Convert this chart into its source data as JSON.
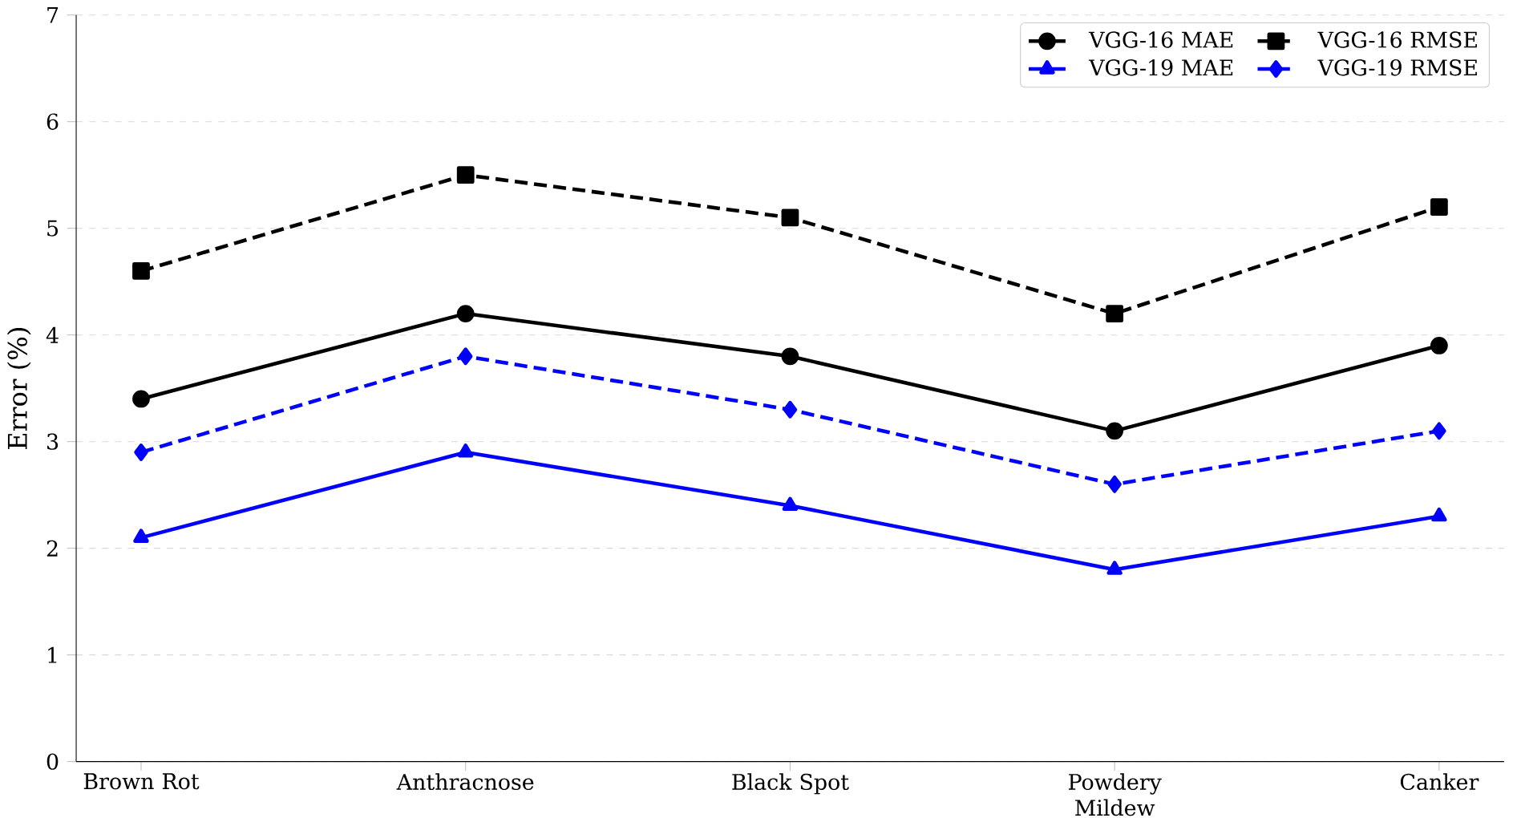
{
  "chart_data": {
    "type": "line",
    "ylabel": "Error (%)",
    "categories": [
      "Brown Rot",
      "Anthracnose",
      "Black Spot",
      "Powdery Mildew",
      "Canker"
    ],
    "ylim": [
      0,
      7
    ],
    "yticks": [
      0,
      1,
      2,
      3,
      4,
      5,
      6,
      7
    ],
    "grid": "y",
    "legend": "top right",
    "series": [
      {
        "name": "VGG-16 MAE",
        "color": "#000000",
        "marker": "circle",
        "line_style": "solid",
        "values": [
          3.4,
          4.2,
          3.8,
          3.1,
          3.9
        ]
      },
      {
        "name": "VGG-16 RMSE",
        "color": "#000000",
        "marker": "square",
        "line_style": "dashed",
        "values": [
          4.6,
          5.5,
          5.1,
          4.2,
          5.2
        ]
      },
      {
        "name": "VGG-19 MAE",
        "color": "#0000ff",
        "marker": "triangle",
        "line_style": "solid",
        "values": [
          2.1,
          2.9,
          2.4,
          1.8,
          2.3
        ]
      },
      {
        "name": "VGG-19 RMSE",
        "color": "#0000ff",
        "marker": "diamond",
        "line_style": "dashed",
        "values": [
          2.9,
          3.8,
          3.3,
          2.6,
          3.1
        ]
      }
    ]
  }
}
